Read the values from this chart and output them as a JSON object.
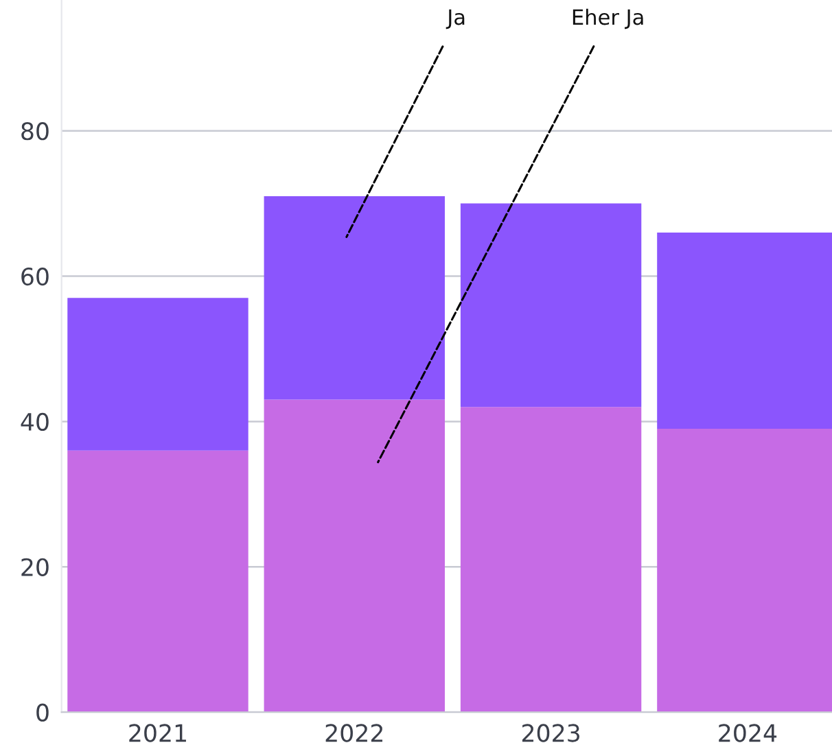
{
  "chart_data": {
    "type": "bar",
    "stacked": true,
    "categories": [
      "2021",
      "2022",
      "2023",
      "2024"
    ],
    "series": [
      {
        "name": "Eher Ja",
        "color": "#c66be5",
        "values": [
          36,
          43,
          42,
          39
        ]
      },
      {
        "name": "Ja",
        "color": "#8b55fd",
        "values": [
          21,
          28,
          28,
          27
        ]
      }
    ],
    "ylim": [
      0,
      98
    ],
    "yticks": [
      0,
      20,
      40,
      60,
      80
    ],
    "grid": "y",
    "legend": false
  }
}
